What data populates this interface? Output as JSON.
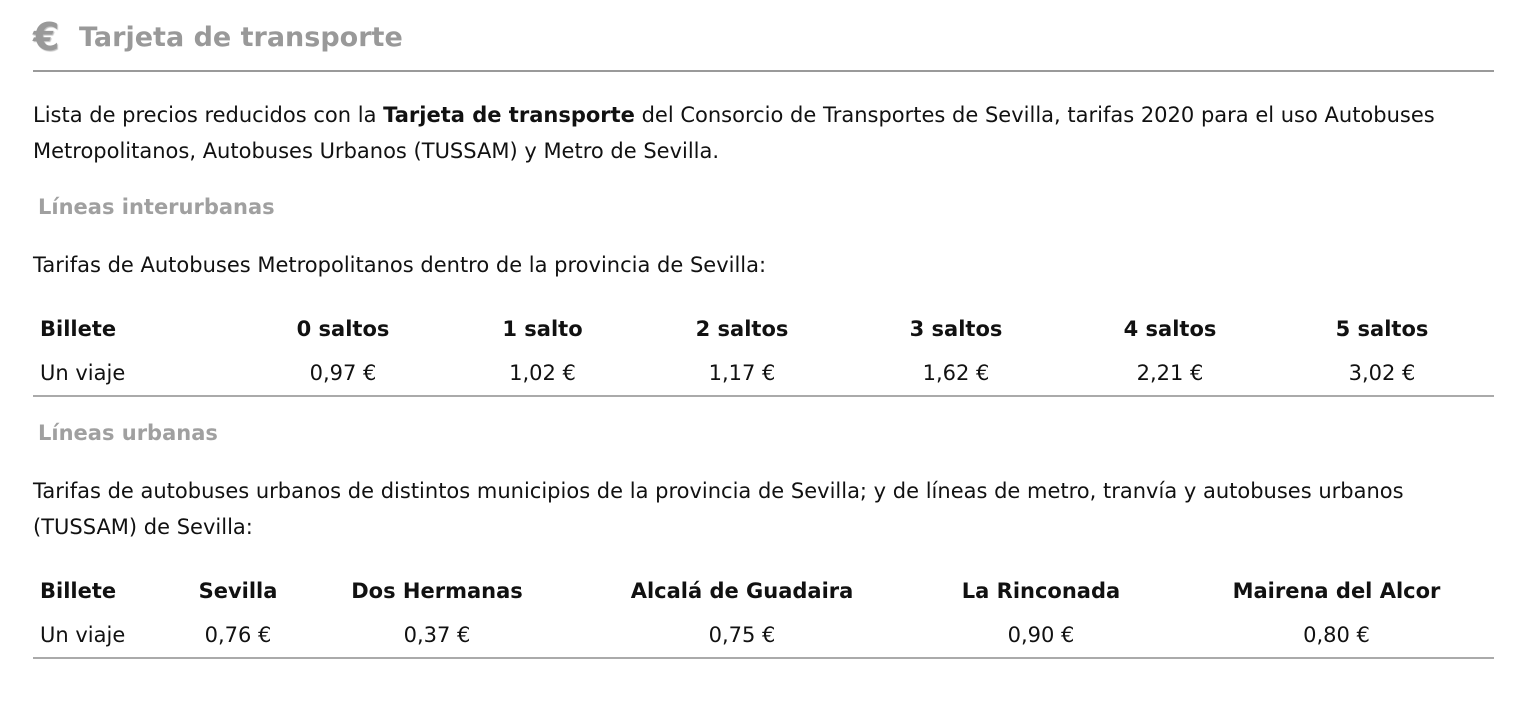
{
  "header": {
    "icon": "euro-icon",
    "title": "Tarjeta de transporte"
  },
  "intro": {
    "before": "Lista de precios reducidos con la ",
    "bold": "Tarjeta de transporte",
    "after": " del Consorcio de Transportes de Sevilla, tarifas 2020 para el uso Autobuses Metropolitanos, Autobuses Urbanos (TUSSAM) y Metro de Sevilla."
  },
  "interurbanas": {
    "heading": "Líneas interurbanas",
    "description": "Tarifas de Autobuses Metropolitanos dentro de la provincia de Sevilla:",
    "columns": [
      "Billete",
      "0 saltos",
      "1 salto",
      "2 saltos",
      "3 saltos",
      "4 saltos",
      "5 saltos"
    ],
    "rows": [
      [
        "Un viaje",
        "0,97 €",
        "1,02 €",
        "1,17 €",
        "1,62 €",
        "2,21 €",
        "3,02 €"
      ]
    ]
  },
  "urbanas": {
    "heading": "Líneas urbanas",
    "description": "Tarifas de autobuses urbanos de distintos municipios de la provincia de Sevilla; y de líneas de metro, tranvía y autobuses urbanos (TUSSAM) de Sevilla:",
    "columns": [
      "Billete",
      "Sevilla",
      "Dos Hermanas",
      "Alcalá de Guadaira",
      "La Rinconada",
      "Mairena del Alcor"
    ],
    "rows": [
      [
        "Un viaje",
        "0,76 €",
        "0,37 €",
        "0,75 €",
        "0,90 €",
        "0,80 €"
      ]
    ]
  }
}
